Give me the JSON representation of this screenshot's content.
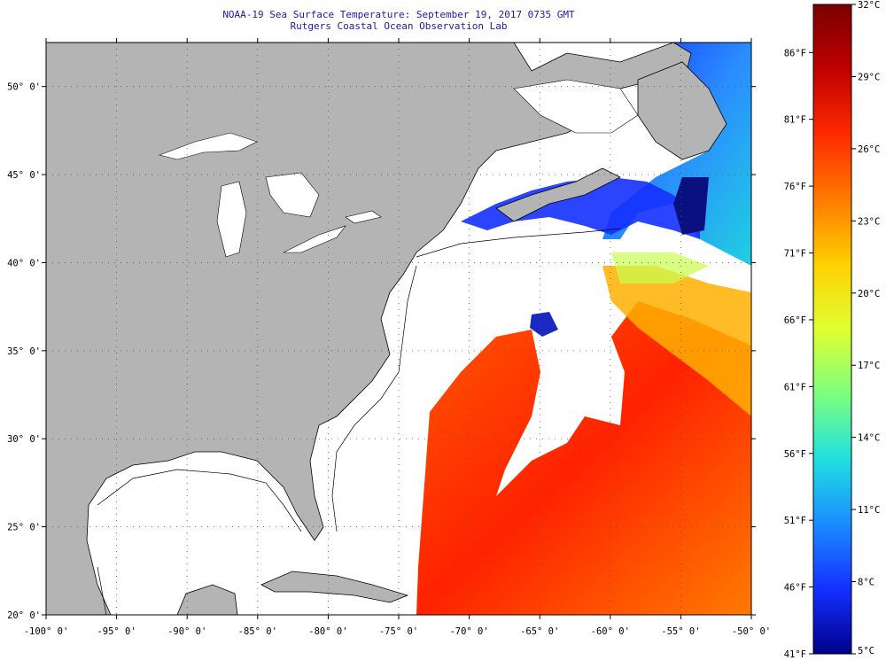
{
  "header": {
    "title": "NOAA-19 Sea Surface Temperature:  September 19, 2017 0735 GMT",
    "subtitle": "Rutgers Coastal Ocean Observation Lab"
  },
  "map": {
    "lon_range": [
      -100,
      -50
    ],
    "lat_range": [
      20,
      52.5
    ],
    "lon_ticks": [
      "-100° 0'",
      "-95° 0'",
      "-90° 0'",
      "-85° 0'",
      "-80° 0'",
      "-75° 0'",
      "-70° 0'",
      "-65° 0'",
      "-60° 0'",
      "-55° 0'",
      "-50° 0'"
    ],
    "lat_ticks": [
      "20° 0'",
      "25° 0'",
      "30° 0'",
      "35° 0'",
      "40° 0'",
      "45° 0'",
      "50° 0'"
    ],
    "land_color": "#b4b4b4",
    "no_data_color": "#ffffff",
    "grid": "dotted"
  },
  "colorbar": {
    "fahrenheit_labels": [
      "86°F",
      "81°F",
      "76°F",
      "71°F",
      "66°F",
      "61°F",
      "56°F",
      "51°F",
      "46°F",
      "41°F"
    ],
    "celsius_labels": [
      "32°C",
      "29°C",
      "26°C",
      "23°C",
      "20°C",
      "17°C",
      "14°C",
      "11°C",
      "8°C",
      "5°C"
    ],
    "range_c": [
      5,
      32
    ],
    "colors": [
      "#7a0000",
      "#c00000",
      "#ff2a00",
      "#ff7a00",
      "#ffd000",
      "#e0ff30",
      "#7dff7d",
      "#20e0e0",
      "#1a8cff",
      "#1430ff",
      "#00008a"
    ]
  }
}
